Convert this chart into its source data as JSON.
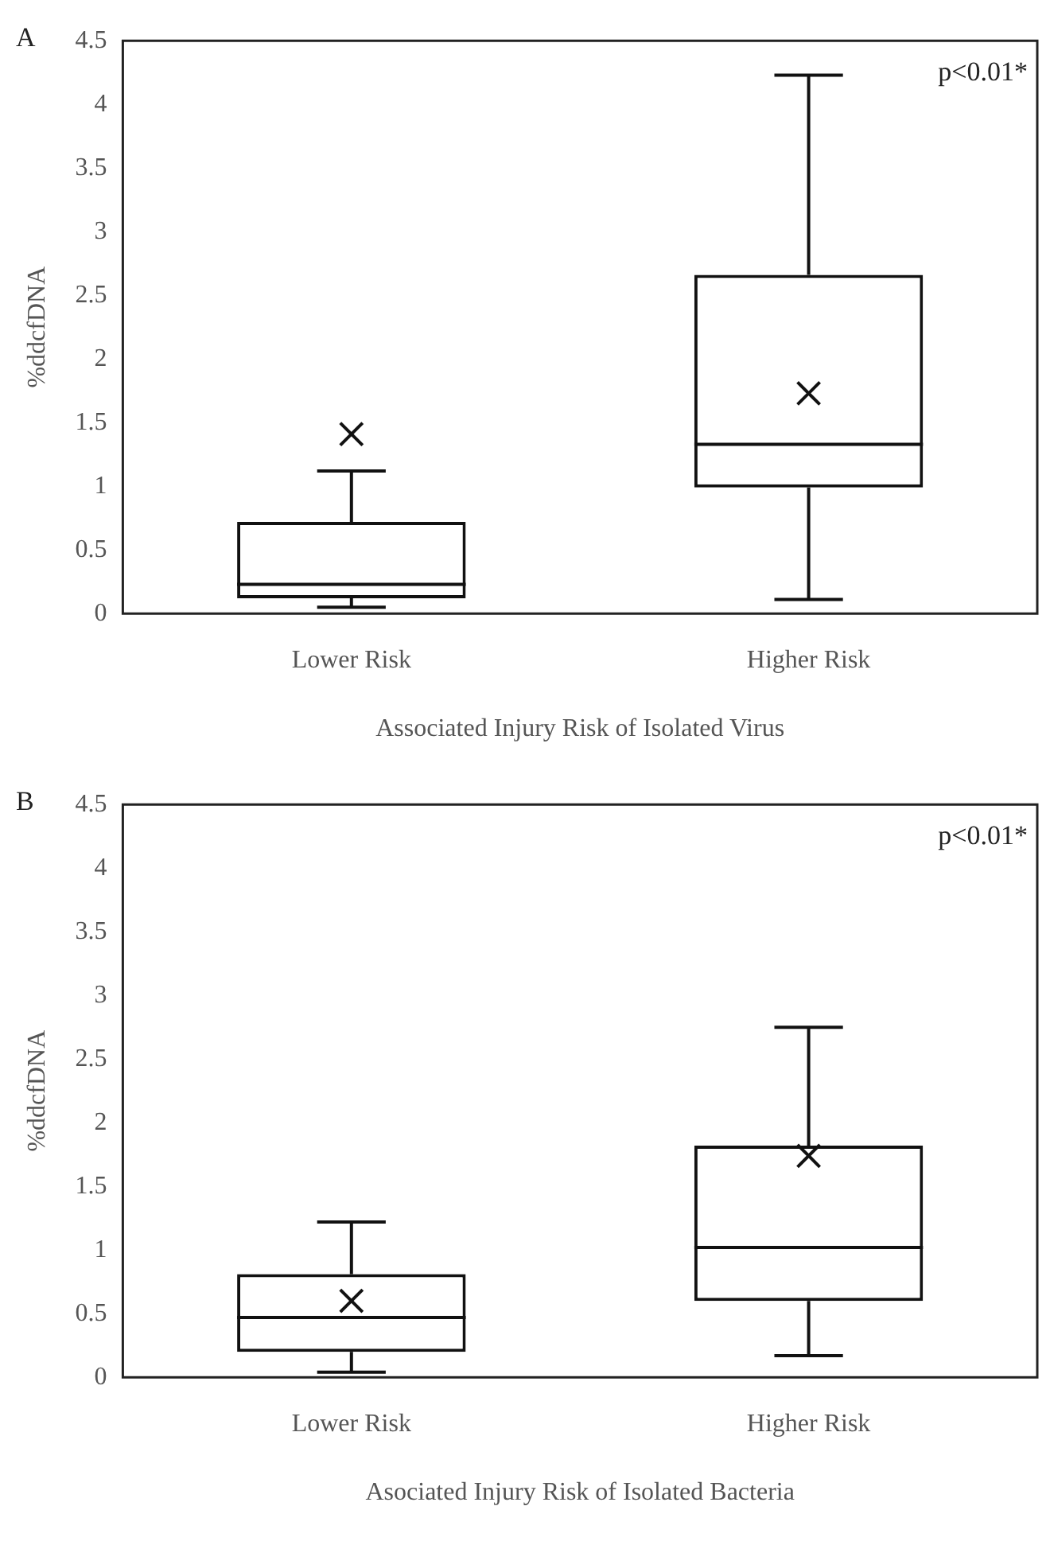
{
  "chart_data": [
    {
      "type": "box",
      "title": "A",
      "xlabel": "Associated Injury Risk of Isolated Virus",
      "ylabel": "%ddcfDNA",
      "categories": [
        "Lower Risk",
        "Higher Risk"
      ],
      "boxes": [
        {
          "low": 0.05,
          "q1": 0.12,
          "median": 0.23,
          "q3": 0.72,
          "high": 1.12,
          "mean": 1.41
        },
        {
          "low": 0.11,
          "q1": 0.99,
          "median": 1.33,
          "q3": 2.66,
          "high": 4.23,
          "mean": 1.73
        }
      ],
      "ylim": [
        0,
        4.5
      ],
      "yticks": [
        0,
        0.5,
        1,
        1.5,
        2,
        2.5,
        3,
        3.5,
        4,
        4.5
      ],
      "grid": false,
      "annotations": [
        "p<0.01*"
      ]
    },
    {
      "type": "box",
      "title": "B",
      "xlabel": "Asociated Injury Risk of Isolated Bacteria",
      "ylabel": "%ddcfDNA",
      "categories": [
        "Lower Risk",
        "Higher Risk"
      ],
      "boxes": [
        {
          "low": 0.04,
          "q1": 0.2,
          "median": 0.47,
          "q3": 0.81,
          "high": 1.22,
          "mean": 0.6
        },
        {
          "low": 0.17,
          "q1": 0.6,
          "median": 1.02,
          "q3": 1.82,
          "high": 2.75,
          "mean": 1.74
        }
      ],
      "ylim": [
        0,
        4.5
      ],
      "yticks": [
        0,
        0.5,
        1,
        1.5,
        2,
        2.5,
        3,
        3.5,
        4,
        4.5
      ],
      "grid": false,
      "annotations": [
        "p<0.01*"
      ]
    }
  ]
}
